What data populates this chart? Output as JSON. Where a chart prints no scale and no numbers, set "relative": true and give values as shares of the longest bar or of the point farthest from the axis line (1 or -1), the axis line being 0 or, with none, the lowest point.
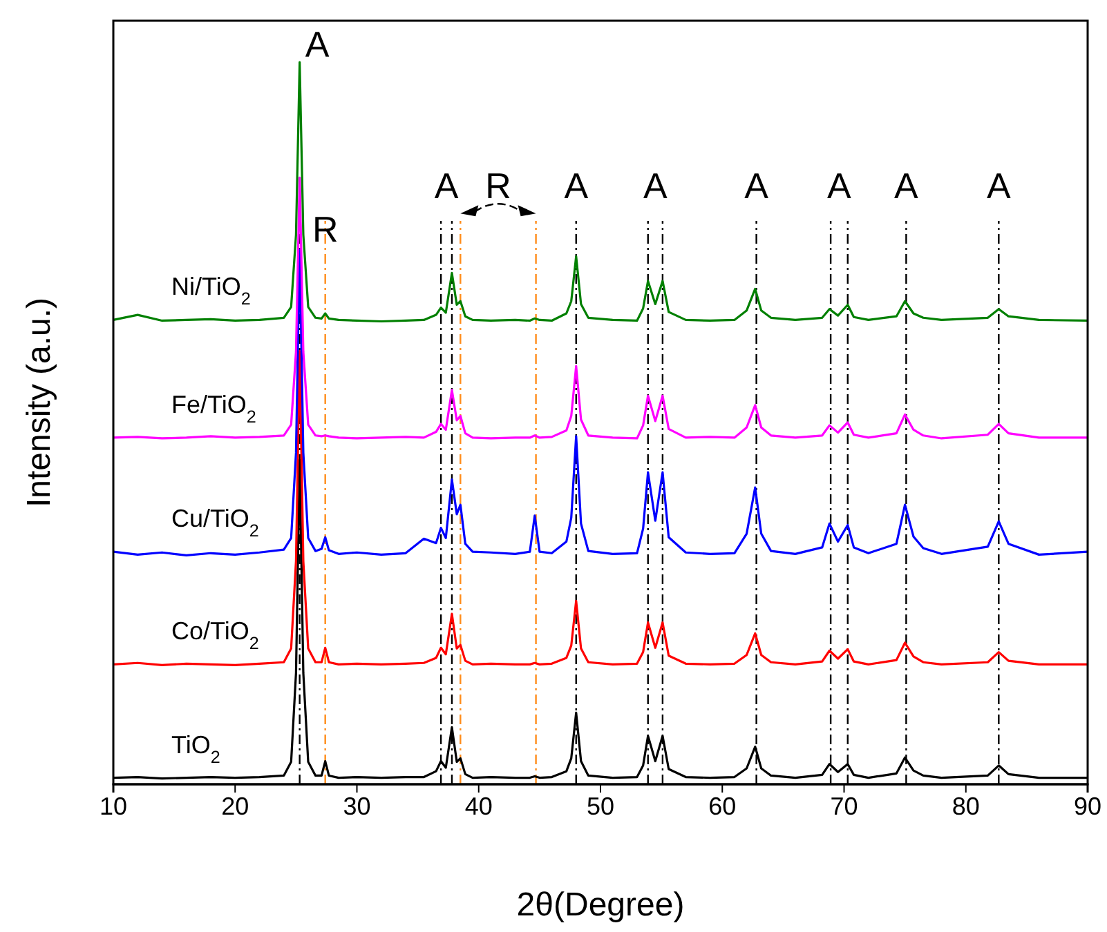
{
  "chart_data": {
    "type": "line",
    "relative": true,
    "xlabel": "2θ(Degree)",
    "ylabel": "Intensity (a.u.)",
    "xlim": [
      10,
      90
    ],
    "xticks": [
      10,
      20,
      30,
      40,
      50,
      60,
      70,
      80,
      90
    ],
    "legend": false,
    "grid": false,
    "x": [
      10,
      12,
      14,
      16,
      18,
      20,
      22,
      24,
      24.6,
      25.0,
      25.3,
      25.6,
      26.0,
      26.6,
      27.1,
      27.4,
      27.7,
      28.5,
      30,
      32,
      34,
      35.5,
      36.5,
      36.9,
      37.3,
      37.8,
      38.2,
      38.5,
      38.9,
      39.5,
      41,
      43,
      44.2,
      44.6,
      45.0,
      46,
      47.2,
      47.6,
      48.0,
      48.4,
      49,
      51,
      53,
      53.5,
      53.9,
      54.5,
      55.1,
      55.6,
      57,
      59,
      61,
      62.0,
      62.7,
      63.2,
      64,
      66,
      68.2,
      68.8,
      69.5,
      70.3,
      70.8,
      72,
      74.3,
      75.0,
      75.7,
      76.5,
      78,
      81.8,
      82.7,
      83.5,
      86,
      90
    ],
    "series": [
      {
        "name": "TiO$_{2}$",
        "color": "#000000",
        "values": [
          0.009,
          0.01,
          0.008,
          0.009,
          0.01,
          0.009,
          0.01,
          0.012,
          0.031,
          0.154,
          0.449,
          0.154,
          0.031,
          0.012,
          0.012,
          0.032,
          0.012,
          0.009,
          0.01,
          0.009,
          0.01,
          0.01,
          0.018,
          0.032,
          0.023,
          0.079,
          0.031,
          0.036,
          0.014,
          0.009,
          0.01,
          0.009,
          0.009,
          0.011,
          0.009,
          0.01,
          0.018,
          0.036,
          0.099,
          0.032,
          0.012,
          0.009,
          0.01,
          0.026,
          0.067,
          0.032,
          0.067,
          0.021,
          0.01,
          0.009,
          0.01,
          0.022,
          0.052,
          0.022,
          0.012,
          0.009,
          0.013,
          0.028,
          0.017,
          0.028,
          0.013,
          0.009,
          0.015,
          0.037,
          0.019,
          0.012,
          0.009,
          0.012,
          0.026,
          0.014,
          0.009,
          0.009
        ]
      },
      {
        "name": "Co/TiO$_{2}$",
        "color": "#ff0000",
        "values": [
          0.166,
          0.168,
          0.165,
          0.167,
          0.166,
          0.165,
          0.167,
          0.169,
          0.188,
          0.309,
          0.6,
          0.309,
          0.188,
          0.169,
          0.169,
          0.189,
          0.169,
          0.166,
          0.167,
          0.166,
          0.167,
          0.168,
          0.175,
          0.189,
          0.18,
          0.236,
          0.188,
          0.193,
          0.171,
          0.166,
          0.167,
          0.166,
          0.166,
          0.168,
          0.166,
          0.167,
          0.175,
          0.192,
          0.254,
          0.188,
          0.169,
          0.166,
          0.167,
          0.183,
          0.224,
          0.189,
          0.224,
          0.178,
          0.167,
          0.166,
          0.167,
          0.179,
          0.209,
          0.179,
          0.169,
          0.166,
          0.17,
          0.185,
          0.174,
          0.187,
          0.17,
          0.166,
          0.172,
          0.196,
          0.177,
          0.169,
          0.166,
          0.169,
          0.183,
          0.171,
          0.166,
          0.166
        ]
      },
      {
        "name": "Cu/TiO$_{2}$",
        "color": "#0000ff",
        "values": [
          0.322,
          0.318,
          0.321,
          0.317,
          0.32,
          0.318,
          0.321,
          0.325,
          0.341,
          0.459,
          0.74,
          0.459,
          0.341,
          0.323,
          0.326,
          0.342,
          0.324,
          0.319,
          0.321,
          0.318,
          0.32,
          0.34,
          0.334,
          0.355,
          0.341,
          0.422,
          0.374,
          0.387,
          0.333,
          0.322,
          0.321,
          0.319,
          0.322,
          0.372,
          0.322,
          0.32,
          0.336,
          0.369,
          0.482,
          0.361,
          0.323,
          0.319,
          0.32,
          0.354,
          0.432,
          0.365,
          0.432,
          0.342,
          0.321,
          0.319,
          0.32,
          0.347,
          0.411,
          0.347,
          0.323,
          0.319,
          0.328,
          0.361,
          0.336,
          0.359,
          0.328,
          0.32,
          0.333,
          0.387,
          0.343,
          0.327,
          0.319,
          0.329,
          0.364,
          0.333,
          0.318,
          0.322
        ]
      },
      {
        "name": "Fe/TiO$_{2}$",
        "color": "#ff00ff",
        "values": [
          0.48,
          0.481,
          0.479,
          0.48,
          0.482,
          0.48,
          0.481,
          0.483,
          0.498,
          0.599,
          0.84,
          0.599,
          0.498,
          0.483,
          0.482,
          0.483,
          0.482,
          0.48,
          0.479,
          0.48,
          0.481,
          0.48,
          0.488,
          0.499,
          0.491,
          0.546,
          0.504,
          0.51,
          0.486,
          0.48,
          0.479,
          0.48,
          0.48,
          0.483,
          0.48,
          0.481,
          0.49,
          0.51,
          0.579,
          0.505,
          0.483,
          0.48,
          0.479,
          0.497,
          0.538,
          0.503,
          0.538,
          0.492,
          0.48,
          0.481,
          0.48,
          0.494,
          0.525,
          0.494,
          0.483,
          0.48,
          0.483,
          0.497,
          0.487,
          0.501,
          0.484,
          0.48,
          0.486,
          0.512,
          0.491,
          0.483,
          0.479,
          0.484,
          0.499,
          0.486,
          0.48,
          0.48
        ]
      },
      {
        "name": "Ni/TiO$_{2}$",
        "color": "#008000",
        "values": [
          0.643,
          0.65,
          0.642,
          0.643,
          0.644,
          0.642,
          0.643,
          0.646,
          0.661,
          0.761,
          1.0,
          0.761,
          0.661,
          0.646,
          0.645,
          0.652,
          0.645,
          0.643,
          0.642,
          0.641,
          0.642,
          0.643,
          0.65,
          0.66,
          0.653,
          0.708,
          0.664,
          0.669,
          0.648,
          0.643,
          0.642,
          0.643,
          0.642,
          0.645,
          0.643,
          0.642,
          0.652,
          0.669,
          0.731,
          0.665,
          0.646,
          0.643,
          0.642,
          0.659,
          0.697,
          0.665,
          0.697,
          0.654,
          0.643,
          0.642,
          0.643,
          0.656,
          0.686,
          0.656,
          0.646,
          0.643,
          0.646,
          0.658,
          0.649,
          0.664,
          0.647,
          0.643,
          0.648,
          0.669,
          0.652,
          0.646,
          0.643,
          0.646,
          0.658,
          0.648,
          0.643,
          0.642
        ]
      }
    ],
    "ref_lines": [
      {
        "axis": "x",
        "value": 25.3,
        "color": "#000000",
        "line_style": "dashed"
      },
      {
        "axis": "x",
        "value": 36.9,
        "color": "#000000",
        "line_style": "dashed"
      },
      {
        "axis": "x",
        "value": 37.8,
        "color": "#000000",
        "line_style": "dashed"
      },
      {
        "axis": "x",
        "value": 48.0,
        "color": "#000000",
        "line_style": "dashed"
      },
      {
        "axis": "x",
        "value": 53.9,
        "color": "#000000",
        "line_style": "dashed"
      },
      {
        "axis": "x",
        "value": 55.1,
        "color": "#000000",
        "line_style": "dashed"
      },
      {
        "axis": "x",
        "value": 62.8,
        "color": "#000000",
        "line_style": "dashed"
      },
      {
        "axis": "x",
        "value": 68.9,
        "color": "#000000",
        "line_style": "dashed"
      },
      {
        "axis": "x",
        "value": 70.3,
        "color": "#000000",
        "line_style": "dashed"
      },
      {
        "axis": "x",
        "value": 75.1,
        "color": "#000000",
        "line_style": "dashed"
      },
      {
        "axis": "x",
        "value": 82.7,
        "color": "#000000",
        "line_style": "dashed"
      },
      {
        "axis": "x",
        "value": 27.4,
        "color": "#ff8c1a",
        "line_style": "dashed"
      },
      {
        "axis": "x",
        "value": 38.5,
        "color": "#ff8c1a",
        "line_style": "dashed"
      },
      {
        "axis": "x",
        "value": 44.7,
        "color": "#ff8c1a",
        "line_style": "dashed"
      }
    ],
    "annotations": [
      "A",
      "R",
      "A",
      "R",
      "A",
      "A",
      "A",
      "A",
      "A",
      "A"
    ]
  }
}
